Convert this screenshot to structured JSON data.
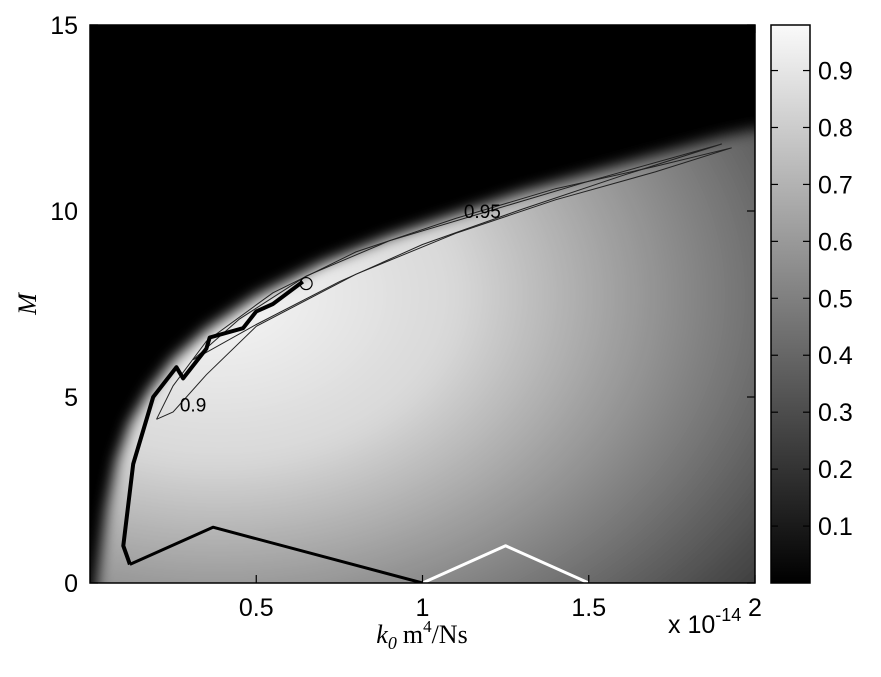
{
  "chart_data": {
    "type": "heatmap",
    "title": "",
    "xlabel": {
      "symbol": "k",
      "subscript": "0",
      "unit_prefix": "m",
      "unit_power": "4",
      "unit_suffix": "/Ns"
    },
    "ylabel": "M",
    "x_exponent": {
      "base": "x 10",
      "power": "-14"
    },
    "xlim": [
      0,
      2
    ],
    "ylim": [
      0,
      15
    ],
    "xticks": [
      0.5,
      1,
      1.5,
      2
    ],
    "xtick_labels": [
      "0.5",
      "1",
      "1.5",
      "2"
    ],
    "yticks": [
      0,
      5,
      10,
      15
    ],
    "ytick_labels": [
      "0",
      "5",
      "10",
      "15"
    ],
    "grid": false,
    "colormap": "gray",
    "colorbar": {
      "range": [
        0,
        0.98
      ],
      "ticks": [
        0.1,
        0.2,
        0.3,
        0.4,
        0.5,
        0.6,
        0.7,
        0.8,
        0.9
      ],
      "tick_labels": [
        "0.1",
        "0.2",
        "0.3",
        "0.4",
        "0.5",
        "0.6",
        "0.7",
        "0.8",
        "0.9"
      ]
    },
    "contours": [
      {
        "level": 0.9,
        "label": "0.9",
        "label_at": [
          0.31,
          4.75
        ]
      },
      {
        "level": 0.95,
        "label": "0.95",
        "label_at": [
          1.18,
          9.95
        ]
      }
    ],
    "lines": [
      {
        "color": "#000000",
        "width": "thick",
        "points": [
          [
            0.64,
            8.1
          ],
          [
            0.55,
            7.5
          ],
          [
            0.5,
            7.3
          ],
          [
            0.46,
            6.85
          ],
          [
            0.36,
            6.6
          ],
          [
            0.35,
            6.3
          ],
          [
            0.28,
            5.5
          ],
          [
            0.26,
            5.8
          ],
          [
            0.19,
            5.0
          ],
          [
            0.13,
            3.2
          ],
          [
            0.1,
            1.0
          ],
          [
            0.12,
            0.5
          ]
        ]
      },
      {
        "color": "#000000",
        "width": "medium",
        "points": [
          [
            0.12,
            0.5
          ],
          [
            0.37,
            1.5
          ],
          [
            1.0,
            0.0
          ]
        ]
      },
      {
        "color": "#ffffff",
        "width": "medium",
        "points": [
          [
            1.0,
            0.0
          ],
          [
            1.25,
            1.0
          ],
          [
            1.5,
            0.0
          ]
        ]
      }
    ],
    "markers": [
      {
        "shape": "circle",
        "at": [
          0.65,
          8.05
        ]
      }
    ]
  }
}
